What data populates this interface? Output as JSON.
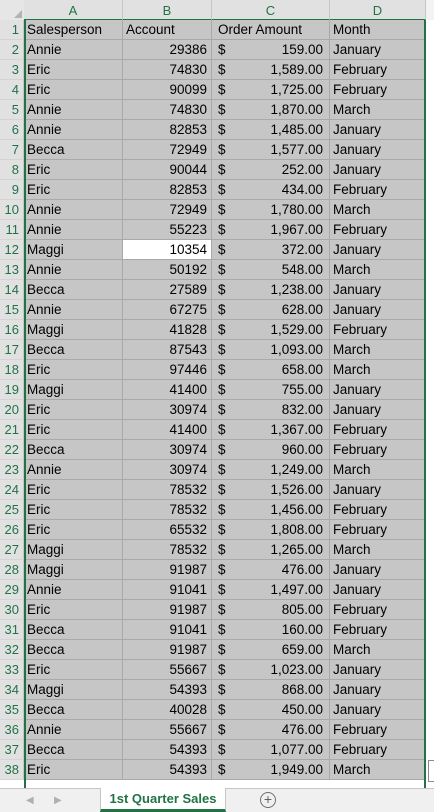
{
  "columns": [
    "A",
    "B",
    "C",
    "D"
  ],
  "headers": {
    "salesperson": "Salesperson",
    "account": "Account",
    "order_amount": "Order Amount",
    "month": "Month"
  },
  "currency_symbol": "$",
  "active_cell": "B12",
  "rows": [
    {
      "n": "2",
      "a": "Annie",
      "b": "29386",
      "c": "159.00",
      "d": "January"
    },
    {
      "n": "3",
      "a": "Eric",
      "b": "74830",
      "c": "1,589.00",
      "d": "February"
    },
    {
      "n": "4",
      "a": "Eric",
      "b": "90099",
      "c": "1,725.00",
      "d": "February"
    },
    {
      "n": "5",
      "a": "Annie",
      "b": "74830",
      "c": "1,870.00",
      "d": "March"
    },
    {
      "n": "6",
      "a": "Annie",
      "b": "82853",
      "c": "1,485.00",
      "d": "January"
    },
    {
      "n": "7",
      "a": "Becca",
      "b": "72949",
      "c": "1,577.00",
      "d": "January"
    },
    {
      "n": "8",
      "a": "Eric",
      "b": "90044",
      "c": "252.00",
      "d": "January"
    },
    {
      "n": "9",
      "a": "Eric",
      "b": "82853",
      "c": "434.00",
      "d": "February"
    },
    {
      "n": "10",
      "a": "Annie",
      "b": "72949",
      "c": "1,780.00",
      "d": "March"
    },
    {
      "n": "11",
      "a": "Annie",
      "b": "55223",
      "c": "1,967.00",
      "d": "February"
    },
    {
      "n": "12",
      "a": "Maggi",
      "b": "10354",
      "c": "372.00",
      "d": "January"
    },
    {
      "n": "13",
      "a": "Annie",
      "b": "50192",
      "c": "548.00",
      "d": "March"
    },
    {
      "n": "14",
      "a": "Becca",
      "b": "27589",
      "c": "1,238.00",
      "d": "January"
    },
    {
      "n": "15",
      "a": "Annie",
      "b": "67275",
      "c": "628.00",
      "d": "January"
    },
    {
      "n": "16",
      "a": "Maggi",
      "b": "41828",
      "c": "1,529.00",
      "d": "February"
    },
    {
      "n": "17",
      "a": "Becca",
      "b": "87543",
      "c": "1,093.00",
      "d": "March"
    },
    {
      "n": "18",
      "a": "Eric",
      "b": "97446",
      "c": "658.00",
      "d": "March"
    },
    {
      "n": "19",
      "a": "Maggi",
      "b": "41400",
      "c": "755.00",
      "d": "January"
    },
    {
      "n": "20",
      "a": "Eric",
      "b": "30974",
      "c": "832.00",
      "d": "January"
    },
    {
      "n": "21",
      "a": "Eric",
      "b": "41400",
      "c": "1,367.00",
      "d": "February"
    },
    {
      "n": "22",
      "a": "Becca",
      "b": "30974",
      "c": "960.00",
      "d": "February"
    },
    {
      "n": "23",
      "a": "Annie",
      "b": "30974",
      "c": "1,249.00",
      "d": "March"
    },
    {
      "n": "24",
      "a": "Eric",
      "b": "78532",
      "c": "1,526.00",
      "d": "January"
    },
    {
      "n": "25",
      "a": "Eric",
      "b": "78532",
      "c": "1,456.00",
      "d": "February"
    },
    {
      "n": "26",
      "a": "Eric",
      "b": "65532",
      "c": "1,808.00",
      "d": "February"
    },
    {
      "n": "27",
      "a": "Maggi",
      "b": "78532",
      "c": "1,265.00",
      "d": "March"
    },
    {
      "n": "28",
      "a": "Maggi",
      "b": "91987",
      "c": "476.00",
      "d": "January"
    },
    {
      "n": "29",
      "a": "Annie",
      "b": "91041",
      "c": "1,497.00",
      "d": "January"
    },
    {
      "n": "30",
      "a": "Eric",
      "b": "91987",
      "c": "805.00",
      "d": "February"
    },
    {
      "n": "31",
      "a": "Becca",
      "b": "91041",
      "c": "160.00",
      "d": "February"
    },
    {
      "n": "32",
      "a": "Becca",
      "b": "91987",
      "c": "659.00",
      "d": "March"
    },
    {
      "n": "33",
      "a": "Eric",
      "b": "55667",
      "c": "1,023.00",
      "d": "January"
    },
    {
      "n": "34",
      "a": "Maggi",
      "b": "54393",
      "c": "868.00",
      "d": "January"
    },
    {
      "n": "35",
      "a": "Becca",
      "b": "40028",
      "c": "450.00",
      "d": "January"
    },
    {
      "n": "36",
      "a": "Annie",
      "b": "55667",
      "c": "476.00",
      "d": "February"
    },
    {
      "n": "37",
      "a": "Becca",
      "b": "54393",
      "c": "1,077.00",
      "d": "February"
    },
    {
      "n": "38",
      "a": "Eric",
      "b": "54393",
      "c": "1,949.00",
      "d": "March"
    }
  ],
  "sheet_tab": {
    "label": "1st Quarter Sales",
    "nav_prev": "◀",
    "nav_next": "▶",
    "add_sheet": "+"
  },
  "colors": {
    "accent": "#217346",
    "selection_fill": "#c6c6c6",
    "active_cell_fill": "#ffffff"
  }
}
